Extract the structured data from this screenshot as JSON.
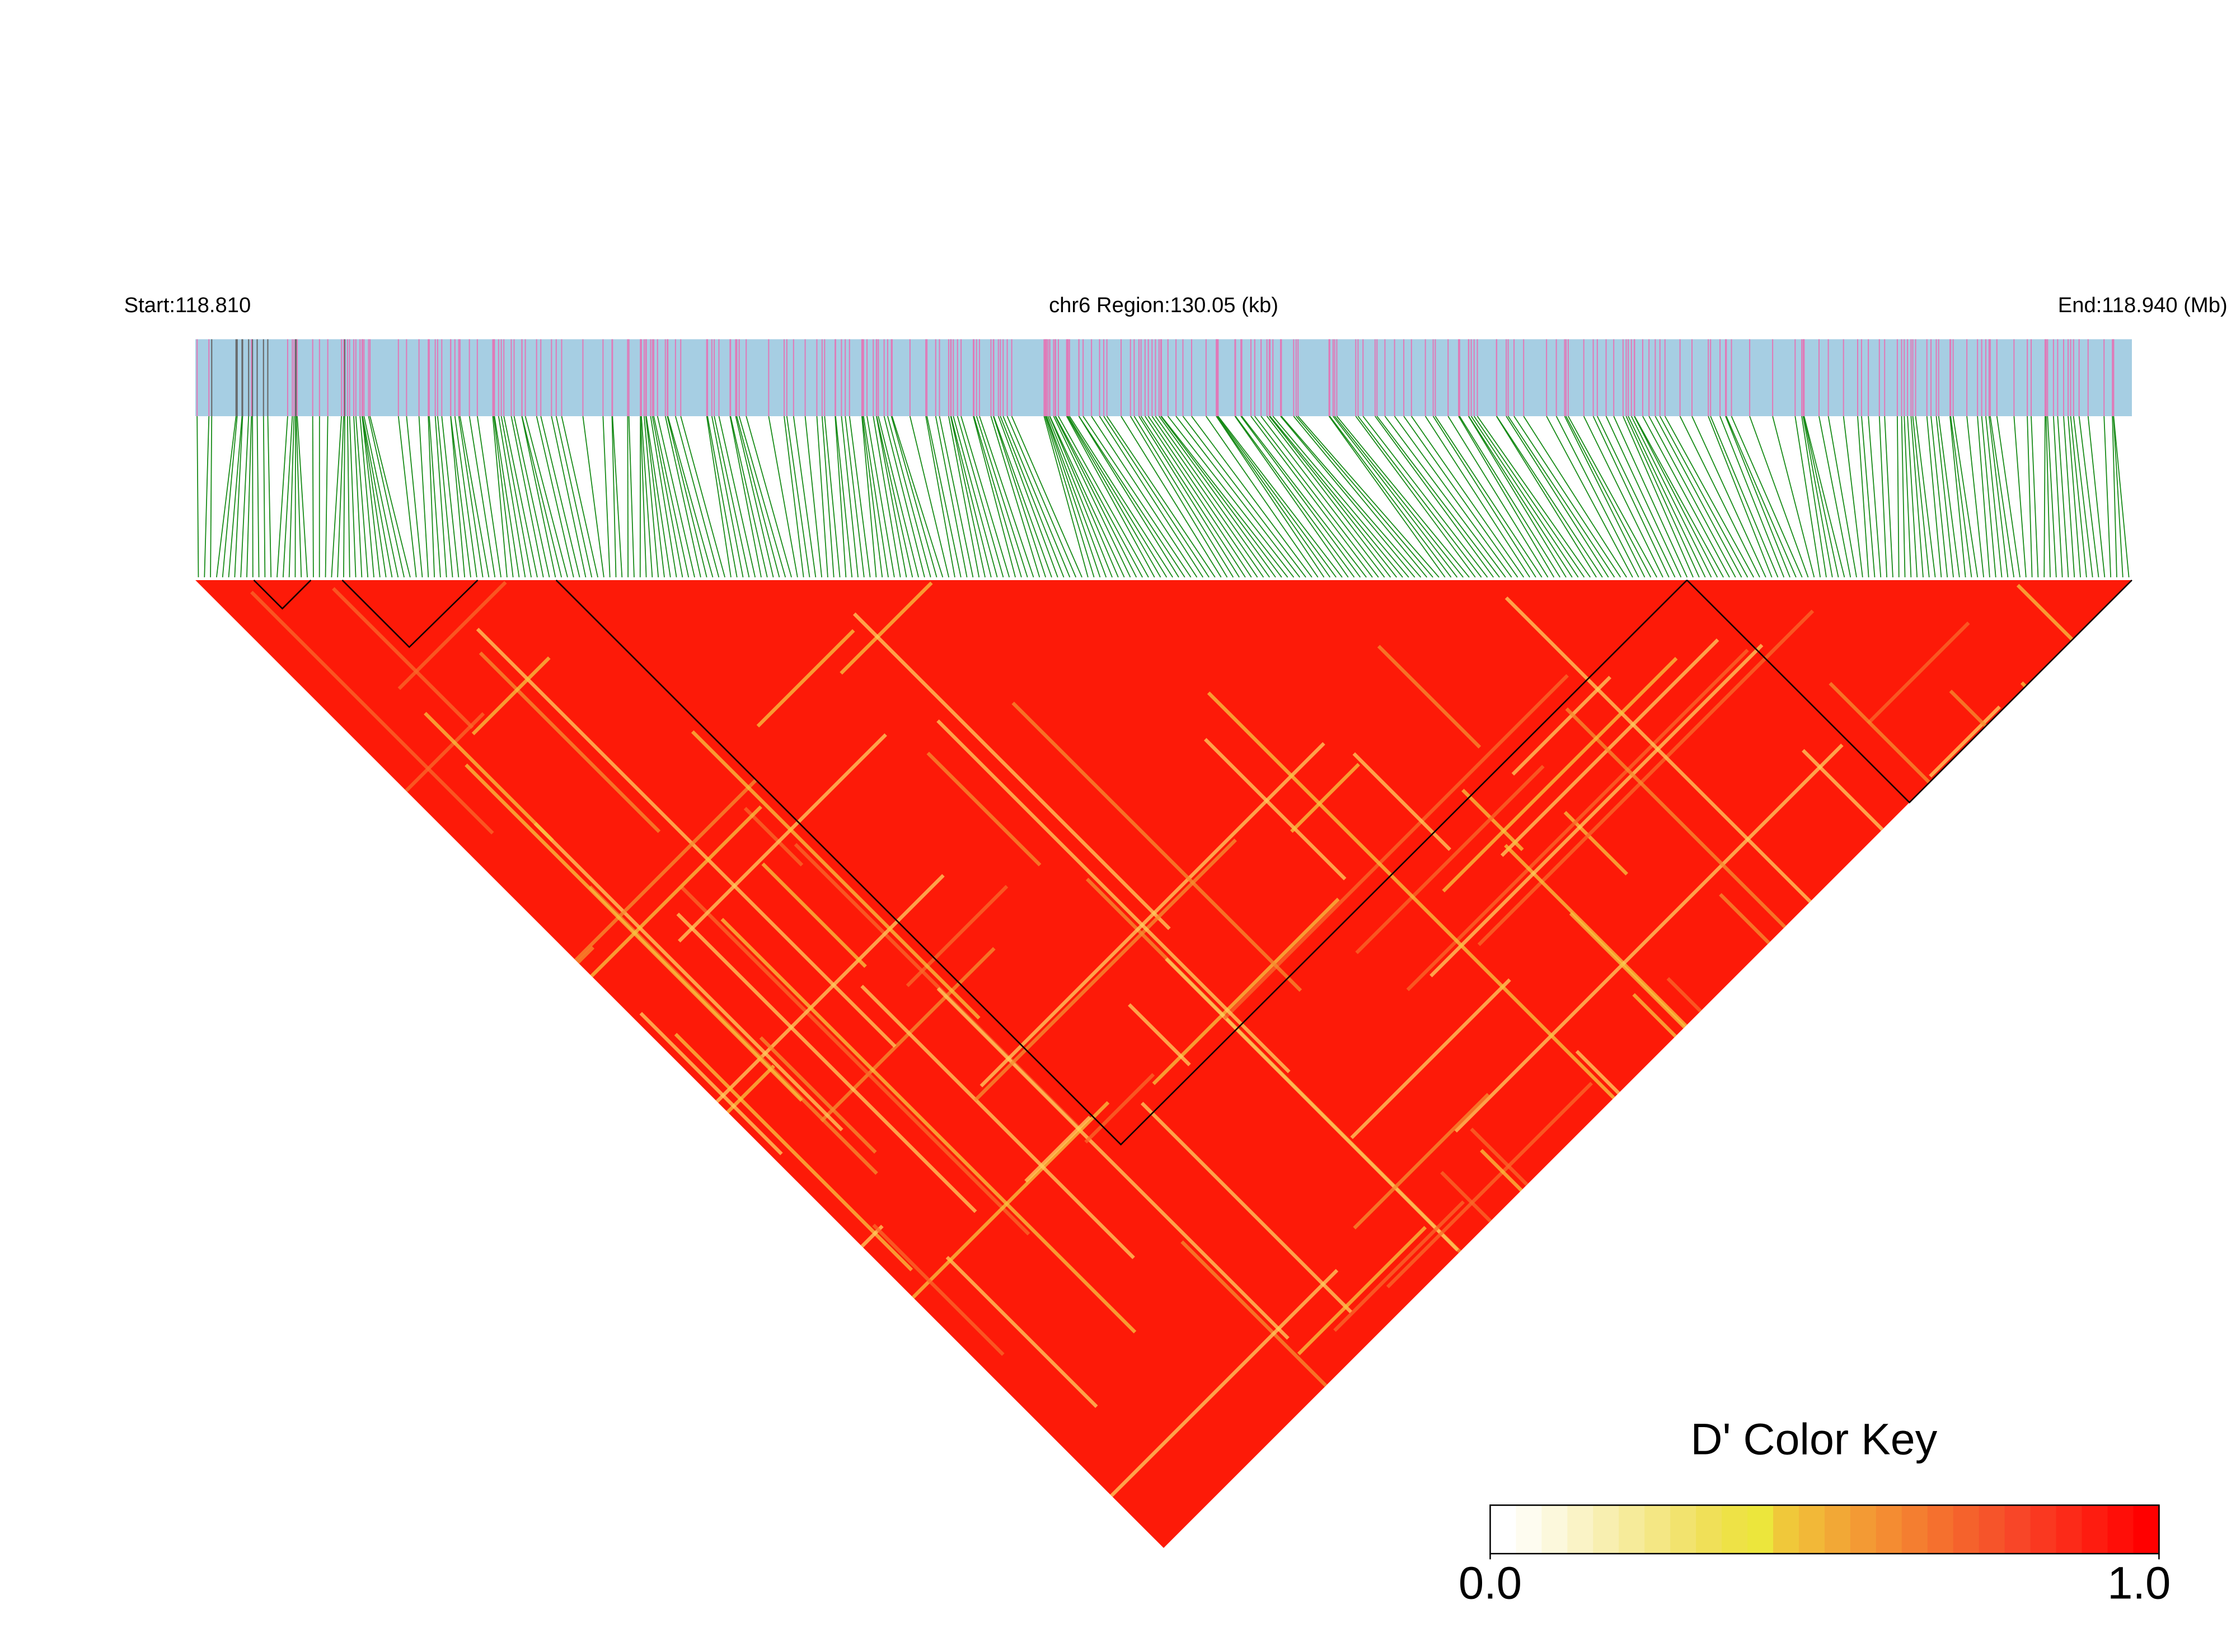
{
  "chart_data": {
    "type": "ld-heatmap",
    "start_label": "Start:118.810",
    "region_label": "chr6 Region:130.05 (kb)",
    "end_label": "End:118.940 (Mb)",
    "color_key": {
      "title": "D' Color Key",
      "lim": [
        0,
        1
      ],
      "ticks": [
        {
          "value": 0,
          "label": "0.0"
        },
        {
          "value": 1,
          "label": "1.0"
        }
      ],
      "colors": [
        "#ffffff",
        "#fefcf0",
        "#fcf8dc",
        "#faf3c6",
        "#f8efb0",
        "#f6eb9a",
        "#f4e784",
        "#f2e36e",
        "#f0e058",
        "#eee246",
        "#ece63c",
        "#f0c83a",
        "#f2b838",
        "#f2a836",
        "#f39a34",
        "#f48c32",
        "#f47e30",
        "#f5702e",
        "#f5622c",
        "#f6542a",
        "#f84628",
        "#fa3820",
        "#fc2a18",
        "#fe1c10",
        "#ff0e08",
        "#ff0000"
      ]
    }
  }
}
